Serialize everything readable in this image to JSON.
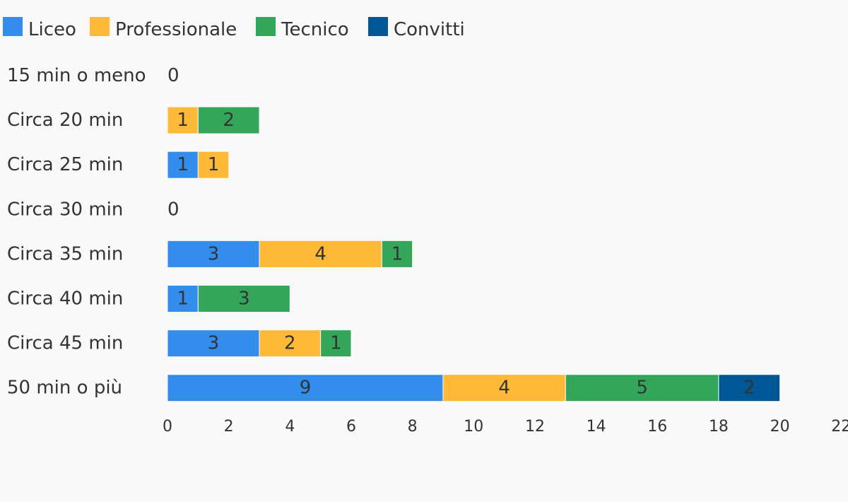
{
  "chart_data": {
    "type": "bar",
    "orientation": "horizontal",
    "stacked": true,
    "title": "",
    "xlabel": "",
    "ylabel": "",
    "categories": [
      "15 min o meno",
      "Circa 20 min",
      "Circa 25 min",
      "Circa 30 min",
      "Circa 35 min",
      "Circa 40 min",
      "Circa 45 min",
      "50 min o più"
    ],
    "series": [
      {
        "name": "Liceo",
        "color": "#338ded",
        "values": [
          0,
          0,
          1,
          0,
          3,
          1,
          3,
          9
        ]
      },
      {
        "name": "Professionale",
        "color": "#ffb938",
        "values": [
          0,
          1,
          1,
          0,
          4,
          0,
          2,
          4
        ]
      },
      {
        "name": "Tecnico",
        "color": "#33a65a",
        "values": [
          0,
          2,
          0,
          0,
          1,
          3,
          1,
          5
        ]
      },
      {
        "name": "Convitti",
        "color": "#005796",
        "values": [
          0,
          0,
          0,
          0,
          0,
          0,
          0,
          2
        ]
      }
    ],
    "xlim": [
      0,
      22
    ],
    "xticks": [
      "0",
      "2",
      "4",
      "6",
      "8",
      "10",
      "12",
      "14",
      "16",
      "18",
      "20",
      "22"
    ],
    "total_labels": [
      "0",
      "",
      "",
      "0",
      "",
      "",
      "",
      ""
    ],
    "grid": false,
    "legend_position": "top-left"
  }
}
